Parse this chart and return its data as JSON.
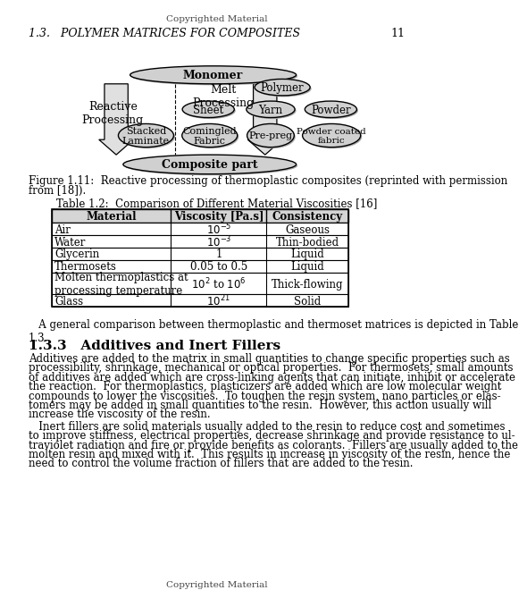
{
  "page_header": "Copyrighted Material",
  "page_footer": "Copyrighted Material",
  "section_header": "1.3.   POLYMER MATRICES FOR COMPOSITES",
  "page_number": "11",
  "figure_caption_line1": "Figure 1.11:  Reactive processing of thermoplastic composites (reprinted with permission",
  "figure_caption_line2": "from [18]).",
  "table_title": "Table 1.2:  Comparison of Different Material Viscosities [16]",
  "table_headers": [
    "Material",
    "Viscosity [Pa.s]",
    "Consistency"
  ],
  "table_col1": [
    "Air",
    "Water",
    "Glycerin",
    "Thermosets",
    "Molten thermoplastics at\nprocessing temperature",
    "Glass"
  ],
  "table_col2": [
    "$10^{-5}$",
    "$10^{-3}$",
    "1",
    "0.05 to 0.5",
    "$10^2$ to $10^6$",
    "$10^{21}$"
  ],
  "table_col3": [
    "Gaseous",
    "Thin-bodied",
    "Liquid",
    "Liquid",
    "Thick-flowing",
    "Solid"
  ],
  "paragraph1": "   A general comparison between thermoplastic and thermoset matrices is depicted in Table\n1.3.",
  "section_title": "1.3.3   Additives and Inert Fillers",
  "paragraph2_lines": [
    "Additives are added to the matrix in small quantities to change specific properties such as",
    "processibility, shrinkage, mechanical or optical properties.  For thermosets, small amounts",
    "of additives are added which are cross-linking agents that can initiate, inhibit or accelerate",
    "the reaction.  For thermoplastics, plasticizers are added which are low molecular weight",
    "compounds to lower the viscosities.  To toughen the resin system, nano particles or elas-",
    "tomers may be added in small quantities to the resin.  However, this action usually will",
    "increase the viscosity of the resin."
  ],
  "paragraph3_lines": [
    "   Inert fillers are solid materials usually added to the resin to reduce cost and sometimes",
    "to improve stiffness, electrical properties, decrease shrinkage and provide resistance to ul-",
    "traviolet radiation and fire or provide benefits as colorants.  Fillers are usually added to the",
    "molten resin and mixed with it.  This results in increase in viscosity of the resin, hence the",
    "need to control the volume fraction of fillers that are added to the resin."
  ],
  "bg_color": "#ffffff",
  "text_color": "#000000",
  "ellipse_face": "#d0d0d0",
  "arrow_face": "#cccccc"
}
